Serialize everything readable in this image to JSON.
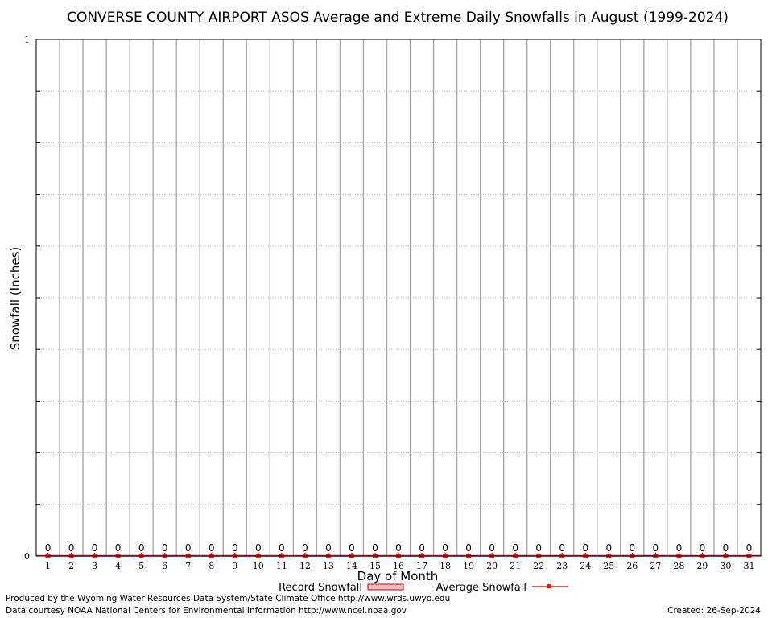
{
  "chart_data": {
    "type": "bar",
    "title": "CONVERSE COUNTY AIRPORT ASOS Average and Extreme Daily Snowfalls in August (1999-2024)",
    "xlabel": "Day of Month",
    "ylabel": "Snowfall (Inches)",
    "ylim": [
      0,
      1
    ],
    "y_ticks": [
      "0",
      "1"
    ],
    "grid": true,
    "legend_placement": "bottom",
    "categories": [
      "1",
      "2",
      "3",
      "4",
      "5",
      "6",
      "7",
      "8",
      "9",
      "10",
      "11",
      "12",
      "13",
      "14",
      "15",
      "16",
      "17",
      "18",
      "19",
      "20",
      "21",
      "22",
      "23",
      "24",
      "25",
      "26",
      "27",
      "28",
      "29",
      "30",
      "31"
    ],
    "series": [
      {
        "name": "Record Snowfall",
        "type": "bar",
        "color": "#cc0000",
        "values": [
          0,
          0,
          0,
          0,
          0,
          0,
          0,
          0,
          0,
          0,
          0,
          0,
          0,
          0,
          0,
          0,
          0,
          0,
          0,
          0,
          0,
          0,
          0,
          0,
          0,
          0,
          0,
          0,
          0,
          0,
          0
        ]
      },
      {
        "name": "Average Snowfall",
        "type": "line",
        "color": "#e02020",
        "values": [
          0,
          0,
          0,
          0,
          0,
          0,
          0,
          0,
          0,
          0,
          0,
          0,
          0,
          0,
          0,
          0,
          0,
          0,
          0,
          0,
          0,
          0,
          0,
          0,
          0,
          0,
          0,
          0,
          0,
          0,
          0
        ]
      }
    ],
    "data_labels": [
      "0",
      "0",
      "0",
      "0",
      "0",
      "0",
      "0",
      "0",
      "0",
      "0",
      "0",
      "0",
      "0",
      "0",
      "0",
      "0",
      "0",
      "0",
      "0",
      "0",
      "0",
      "0",
      "0",
      "0",
      "0",
      "0",
      "0",
      "0",
      "0",
      "0",
      "0"
    ]
  },
  "footer": {
    "line1": "Produced by the Wyoming Water Resources Data System/State Climate Office http://www.wrds.uwyo.edu",
    "line2": "Data courtesy NOAA National Centers for Environmental Information http://www.ncei.noaa.gov",
    "created": "Created:  26-Sep-2024"
  }
}
